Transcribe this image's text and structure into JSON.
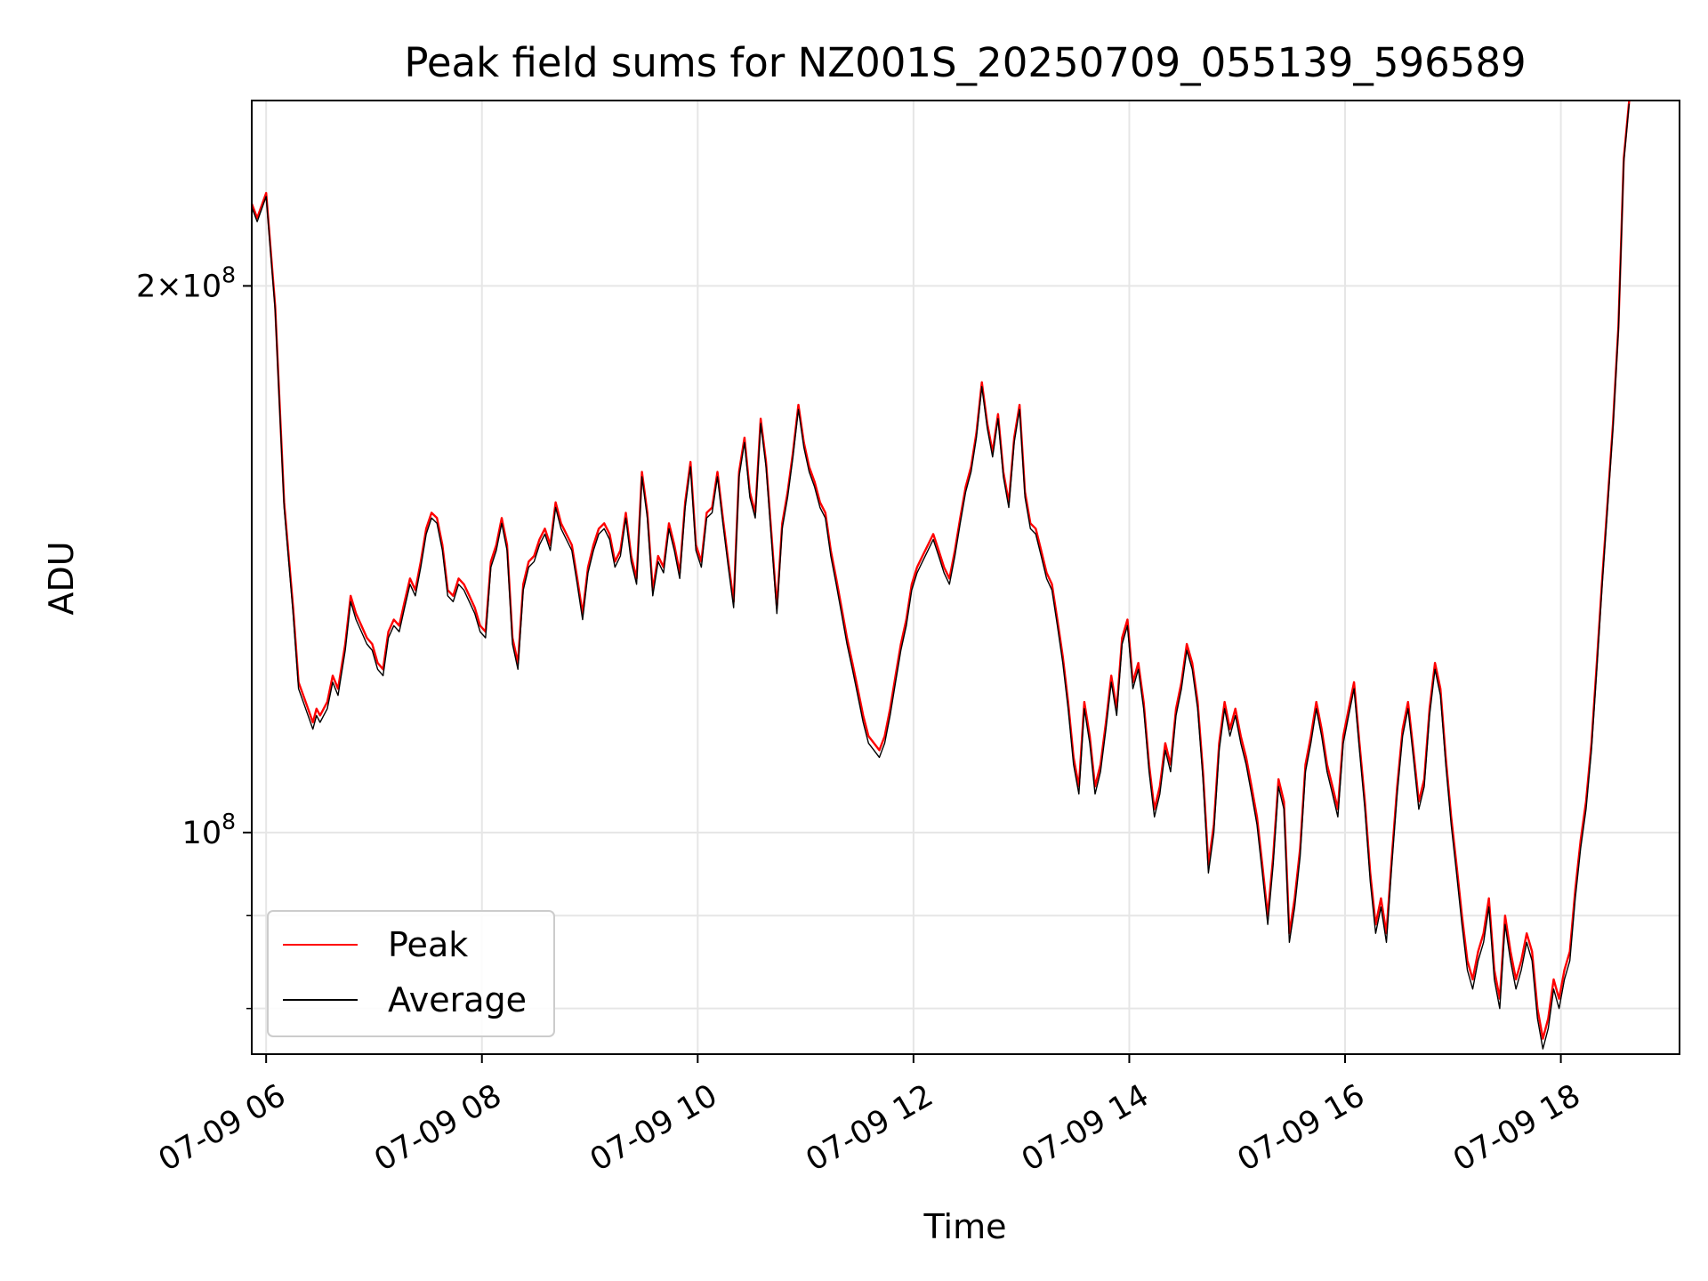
{
  "chart_data": {
    "type": "line",
    "title": "Peak field sums for NZ001S_20250709_055139_596589",
    "xlabel": "Time",
    "ylabel": "ADU",
    "y_scale": "log",
    "grid": true,
    "legend_position": "lower-left",
    "xlim": [
      "07-09 05:52",
      "07-09 19:06"
    ],
    "ylim": [
      75500000,
      253000000
    ],
    "x_ticks": [
      "07-09 06",
      "07-09 08",
      "07-09 10",
      "07-09 12",
      "07-09 14",
      "07-09 16",
      "07-09 18"
    ],
    "y_ticks": [
      {
        "value": 200000000,
        "mantissa": "2",
        "exponent": "8"
      },
      {
        "value": 100000000,
        "mantissa": "",
        "exponent": "8"
      }
    ],
    "series": [
      {
        "name": "Peak",
        "color": "#ff0000"
      },
      {
        "name": "Average",
        "color": "#000000"
      }
    ],
    "x": [
      "07-09 05:52",
      "07-09 05:55",
      "07-09 06:00",
      "07-09 06:05",
      "07-09 06:10",
      "07-09 06:15",
      "07-09 06:18",
      "07-09 06:22",
      "07-09 06:26",
      "07-09 06:28",
      "07-09 06:30",
      "07-09 06:34",
      "07-09 06:37",
      "07-09 06:40",
      "07-09 06:44",
      "07-09 06:47",
      "07-09 06:50",
      "07-09 06:53",
      "07-09 06:56",
      "07-09 06:59",
      "07-09 07:02",
      "07-09 07:05",
      "07-09 07:08",
      "07-09 07:11",
      "07-09 07:14",
      "07-09 07:17",
      "07-09 07:20",
      "07-09 07:23",
      "07-09 07:26",
      "07-09 07:29",
      "07-09 07:32",
      "07-09 07:35",
      "07-09 07:38",
      "07-09 07:41",
      "07-09 07:44",
      "07-09 07:47",
      "07-09 07:50",
      "07-09 07:53",
      "07-09 07:56",
      "07-09 07:59",
      "07-09 08:02",
      "07-09 08:05",
      "07-09 08:08",
      "07-09 08:11",
      "07-09 08:14",
      "07-09 08:17",
      "07-09 08:20",
      "07-09 08:23",
      "07-09 08:26",
      "07-09 08:29",
      "07-09 08:32",
      "07-09 08:35",
      "07-09 08:38",
      "07-09 08:41",
      "07-09 08:44",
      "07-09 08:47",
      "07-09 08:50",
      "07-09 08:53",
      "07-09 08:56",
      "07-09 08:59",
      "07-09 09:02",
      "07-09 09:05",
      "07-09 09:08",
      "07-09 09:11",
      "07-09 09:14",
      "07-09 09:17",
      "07-09 09:20",
      "07-09 09:23",
      "07-09 09:26",
      "07-09 09:29",
      "07-09 09:32",
      "07-09 09:35",
      "07-09 09:38",
      "07-09 09:41",
      "07-09 09:44",
      "07-09 09:47",
      "07-09 09:50",
      "07-09 09:53",
      "07-09 09:56",
      "07-09 09:59",
      "07-09 10:02",
      "07-09 10:05",
      "07-09 10:08",
      "07-09 10:11",
      "07-09 10:14",
      "07-09 10:17",
      "07-09 10:20",
      "07-09 10:23",
      "07-09 10:26",
      "07-09 10:29",
      "07-09 10:32",
      "07-09 10:35",
      "07-09 10:38",
      "07-09 10:41",
      "07-09 10:44",
      "07-09 10:47",
      "07-09 10:50",
      "07-09 10:53",
      "07-09 10:56",
      "07-09 10:59",
      "07-09 11:02",
      "07-09 11:05",
      "07-09 11:08",
      "07-09 11:11",
      "07-09 11:14",
      "07-09 11:17",
      "07-09 11:20",
      "07-09 11:23",
      "07-09 11:26",
      "07-09 11:29",
      "07-09 11:32",
      "07-09 11:35",
      "07-09 11:38",
      "07-09 11:41",
      "07-09 11:44",
      "07-09 11:47",
      "07-09 11:50",
      "07-09 11:53",
      "07-09 11:56",
      "07-09 11:59",
      "07-09 12:02",
      "07-09 12:05",
      "07-09 12:08",
      "07-09 12:11",
      "07-09 12:14",
      "07-09 12:17",
      "07-09 12:20",
      "07-09 12:23",
      "07-09 12:26",
      "07-09 12:29",
      "07-09 12:32",
      "07-09 12:35",
      "07-09 12:38",
      "07-09 12:41",
      "07-09 12:44",
      "07-09 12:47",
      "07-09 12:50",
      "07-09 12:53",
      "07-09 12:56",
      "07-09 12:59",
      "07-09 13:02",
      "07-09 13:05",
      "07-09 13:08",
      "07-09 13:11",
      "07-09 13:14",
      "07-09 13:17",
      "07-09 13:20",
      "07-09 13:23",
      "07-09 13:26",
      "07-09 13:29",
      "07-09 13:32",
      "07-09 13:35",
      "07-09 13:38",
      "07-09 13:41",
      "07-09 13:44",
      "07-09 13:47",
      "07-09 13:50",
      "07-09 13:53",
      "07-09 13:56",
      "07-09 13:59",
      "07-09 14:02",
      "07-09 14:05",
      "07-09 14:08",
      "07-09 14:11",
      "07-09 14:14",
      "07-09 14:17",
      "07-09 14:20",
      "07-09 14:23",
      "07-09 14:26",
      "07-09 14:29",
      "07-09 14:32",
      "07-09 14:35",
      "07-09 14:38",
      "07-09 14:41",
      "07-09 14:44",
      "07-09 14:47",
      "07-09 14:50",
      "07-09 14:53",
      "07-09 14:56",
      "07-09 14:59",
      "07-09 15:02",
      "07-09 15:05",
      "07-09 15:08",
      "07-09 15:11",
      "07-09 15:14",
      "07-09 15:17",
      "07-09 15:20",
      "07-09 15:23",
      "07-09 15:26",
      "07-09 15:29",
      "07-09 15:32",
      "07-09 15:35",
      "07-09 15:38",
      "07-09 15:41",
      "07-09 15:44",
      "07-09 15:47",
      "07-09 15:50",
      "07-09 15:53",
      "07-09 15:56",
      "07-09 15:59",
      "07-09 16:02",
      "07-09 16:05",
      "07-09 16:08",
      "07-09 16:11",
      "07-09 16:14",
      "07-09 16:17",
      "07-09 16:20",
      "07-09 16:23",
      "07-09 16:26",
      "07-09 16:29",
      "07-09 16:32",
      "07-09 16:35",
      "07-09 16:38",
      "07-09 16:41",
      "07-09 16:44",
      "07-09 16:47",
      "07-09 16:50",
      "07-09 16:53",
      "07-09 16:56",
      "07-09 16:59",
      "07-09 17:02",
      "07-09 17:05",
      "07-09 17:08",
      "07-09 17:11",
      "07-09 17:14",
      "07-09 17:17",
      "07-09 17:20",
      "07-09 17:23",
      "07-09 17:26",
      "07-09 17:29",
      "07-09 17:32",
      "07-09 17:35",
      "07-09 17:38",
      "07-09 17:41",
      "07-09 17:44",
      "07-09 17:47",
      "07-09 17:50",
      "07-09 17:53",
      "07-09 17:56",
      "07-09 17:59",
      "07-09 18:02",
      "07-09 18:05",
      "07-09 18:08",
      "07-09 18:11",
      "07-09 18:14",
      "07-09 18:17",
      "07-09 18:20",
      "07-09 18:23",
      "07-09 18:26",
      "07-09 18:29",
      "07-09 18:32",
      "07-09 18:35",
      "07-09 18:38",
      "07-09 18:41",
      "07-09 18:44",
      "07-09 18:47",
      "07-09 18:50",
      "07-09 18:53",
      "07-09 18:56",
      "07-09 18:59",
      "07-09 19:02",
      "07-09 19:06"
    ],
    "y_peak_adu": [
      222000000.0,
      218000000.0,
      225000000.0,
      195000000.0,
      152000000.0,
      133000000.0,
      121000000.0,
      118000000.0,
      115000000.0,
      117000000.0,
      116000000.0,
      118000000.0,
      122000000.0,
      120000000.0,
      127000000.0,
      135000000.0,
      132000000.0,
      130000000.0,
      128000000.0,
      127000000.0,
      124000000.0,
      123000000.0,
      129000000.0,
      131000000.0,
      130000000.0,
      134000000.0,
      138000000.0,
      136000000.0,
      141000000.0,
      147000000.0,
      150000000.0,
      149000000.0,
      144000000.0,
      136000000.0,
      135000000.0,
      138000000.0,
      137000000.0,
      135000000.0,
      133000000.0,
      130000000.0,
      129000000.0,
      141000000.0,
      144000000.0,
      149000000.0,
      144000000.0,
      128000000.0,
      124000000.0,
      137000000.0,
      141000000.0,
      142000000.0,
      145000000.0,
      147000000.0,
      144000000.0,
      152000000.0,
      148000000.0,
      146000000.0,
      144000000.0,
      138000000.0,
      132000000.0,
      140000000.0,
      144000000.0,
      147000000.0,
      148000000.0,
      146000000.0,
      141000000.0,
      143000000.0,
      150000000.0,
      142000000.0,
      138000000.0,
      158000000.0,
      150000000.0,
      136000000.0,
      142000000.0,
      140000000.0,
      148000000.0,
      144000000.0,
      139000000.0,
      152000000.0,
      160000000.0,
      144000000.0,
      141000000.0,
      150000000.0,
      151000000.0,
      158000000.0,
      149000000.0,
      141000000.0,
      134000000.0,
      158000000.0,
      165000000.0,
      154000000.0,
      150000000.0,
      169000000.0,
      160000000.0,
      146000000.0,
      133000000.0,
      148000000.0,
      154000000.0,
      162000000.0,
      172000000.0,
      164000000.0,
      159000000.0,
      156000000.0,
      152000000.0,
      150000000.0,
      143000000.0,
      138000000.0,
      133000000.0,
      128000000.0,
      124000000.0,
      120000000.0,
      116000000.0,
      113000000.0,
      112000000.0,
      111000000.0,
      113000000.0,
      117000000.0,
      122000000.0,
      127000000.0,
      131000000.0,
      137000000.0,
      140000000.0,
      142000000.0,
      144000000.0,
      146000000.0,
      143000000.0,
      140000000.0,
      138000000.0,
      143000000.0,
      149000000.0,
      155000000.0,
      159000000.0,
      166000000.0,
      177000000.0,
      168000000.0,
      162000000.0,
      170000000.0,
      158000000.0,
      152000000.0,
      165000000.0,
      172000000.0,
      154000000.0,
      148000000.0,
      147000000.0,
      143000000.0,
      139000000.0,
      137000000.0,
      131000000.0,
      125000000.0,
      118000000.0,
      110000000.0,
      106000000.0,
      118000000.0,
      113000000.0,
      106000000.0,
      109000000.0,
      115000000.0,
      122000000.0,
      117000000.0,
      128000000.0,
      131000000.0,
      121000000.0,
      124000000.0,
      118000000.0,
      109000000.0,
      103000000.0,
      106000000.0,
      112000000.0,
      109000000.0,
      117000000.0,
      121000000.0,
      127000000.0,
      124000000.0,
      118000000.0,
      108000000.0,
      96000000.0,
      101000000.0,
      112000000.0,
      118000000.0,
      114000000.0,
      117000000.0,
      113000000.0,
      110000000.0,
      106000000.0,
      102000000.0,
      96000000.0,
      90000000.0,
      97000000.0,
      107000000.0,
      104000000.0,
      88000000.0,
      92000000.0,
      98000000.0,
      109000000.0,
      113000000.0,
      118000000.0,
      114000000.0,
      109000000.0,
      106000000.0,
      103000000.0,
      113000000.0,
      117000000.0,
      121000000.0,
      112000000.0,
      104000000.0,
      95000000.0,
      89000000.0,
      92000000.0,
      88000000.0,
      97000000.0,
      106000000.0,
      114000000.0,
      118000000.0,
      111000000.0,
      104000000.0,
      107000000.0,
      117000000.0,
      124000000.0,
      120000000.0,
      110000000.0,
      102000000.0,
      96000000.0,
      90000000.0,
      85000000.0,
      83000000.0,
      86000000.0,
      88000000.0,
      92000000.0,
      84000000.0,
      81000000.0,
      90000000.0,
      86000000.0,
      83000000.0,
      85000000.0,
      88000000.0,
      86000000.0,
      80000000.0,
      77000000.0,
      79000000.0,
      83000000.0,
      81000000.0,
      84000000.0,
      86000000.0,
      93000000.0,
      99000000.0,
      104000000.0,
      112000000.0,
      124000000.0,
      138000000.0,
      152000000.0,
      168000000.0,
      190000000.0,
      235000000.0,
      253000000.0
    ],
    "y_average_adu": [
      221000000.0,
      217000000.0,
      224000000.0,
      194000000.0,
      151000000.0,
      132000000.0,
      120000000.0,
      117000000.0,
      114000000.0,
      116000000.0,
      115000000.0,
      117000000.0,
      121000000.0,
      119000000.0,
      126000000.0,
      134000000.0,
      131000000.0,
      129000000.0,
      127000000.0,
      126000000.0,
      123000000.0,
      122000000.0,
      128000000.0,
      130000000.0,
      129000000.0,
      133000000.0,
      137000000.0,
      135000000.0,
      140000000.0,
      146000000.0,
      149000000.0,
      148000000.0,
      143000000.0,
      135000000.0,
      134000000.0,
      137000000.0,
      136000000.0,
      134000000.0,
      132000000.0,
      129000000.0,
      128000000.0,
      140000000.0,
      143000000.0,
      148000000.0,
      143000000.0,
      127000000.0,
      123000000.0,
      136000000.0,
      140000000.0,
      141000000.0,
      144000000.0,
      146000000.0,
      143000000.0,
      151000000.0,
      147000000.0,
      145000000.0,
      143000000.0,
      137000000.0,
      131000000.0,
      139000000.0,
      143000000.0,
      146000000.0,
      147000000.0,
      145000000.0,
      140000000.0,
      142000000.0,
      149000000.0,
      141000000.0,
      137000000.0,
      157000000.0,
      149000000.0,
      135000000.0,
      141000000.0,
      139000000.0,
      147000000.0,
      143000000.0,
      138000000.0,
      151000000.0,
      159000000.0,
      143000000.0,
      140000000.0,
      149000000.0,
      150000000.0,
      157000000.0,
      148000000.0,
      140000000.0,
      133000000.0,
      157000000.0,
      164000000.0,
      153000000.0,
      149000000.0,
      168000000.0,
      159000000.0,
      145000000.0,
      132000000.0,
      147000000.0,
      153000000.0,
      161000000.0,
      171000000.0,
      163000000.0,
      158000000.0,
      155000000.0,
      151000000.0,
      149000000.0,
      142000000.0,
      137000000.0,
      132000000.0,
      127000000.0,
      123000000.0,
      119000000.0,
      115000000.0,
      112000000.0,
      111000000.0,
      110000000.0,
      112000000.0,
      116000000.0,
      121000000.0,
      126000000.0,
      130000000.0,
      136000000.0,
      139000000.0,
      141000000.0,
      143000000.0,
      145000000.0,
      142000000.0,
      139000000.0,
      137000000.0,
      142000000.0,
      148000000.0,
      154000000.0,
      158000000.0,
      165000000.0,
      176000000.0,
      167000000.0,
      161000000.0,
      169000000.0,
      157000000.0,
      151000000.0,
      164000000.0,
      171000000.0,
      153000000.0,
      147000000.0,
      146000000.0,
      142000000.0,
      138000000.0,
      136000000.0,
      130000000.0,
      124000000.0,
      117000000.0,
      109000000.0,
      105000000.0,
      117000000.0,
      112000000.0,
      105000000.0,
      108000000.0,
      114000000.0,
      121000000.0,
      116000000.0,
      127000000.0,
      130000000.0,
      120000000.0,
      123000000.0,
      117000000.0,
      108000000.0,
      102000000.0,
      105000000.0,
      111000000.0,
      108000000.0,
      116000000.0,
      120000000.0,
      126000000.0,
      123000000.0,
      117000000.0,
      107000000.0,
      95000000.0,
      100000000.0,
      111000000.0,
      117000000.0,
      113000000.0,
      116000000.0,
      112000000.0,
      109000000.0,
      105000000.0,
      101000000.0,
      95000000.0,
      89000000.0,
      96000000.0,
      106000000.0,
      103000000.0,
      87000000.0,
      91000000.0,
      97000000.0,
      108000000.0,
      112000000.0,
      117000000.0,
      113000000.0,
      108000000.0,
      105000000.0,
      102000000.0,
      112000000.0,
      116000000.0,
      120000000.0,
      111000000.0,
      103000000.0,
      94000000.0,
      88000000.0,
      91000000.0,
      87000000.0,
      96000000.0,
      105000000.0,
      113000000.0,
      117000000.0,
      110000000.0,
      103000000.0,
      106000000.0,
      116000000.0,
      123000000.0,
      119000000.0,
      109000000.0,
      101000000.0,
      95000000.0,
      89000000.0,
      84000000.0,
      82000000.0,
      85000000.0,
      87000000.0,
      91000000.0,
      83000000.0,
      80000000.0,
      89000000.0,
      85000000.0,
      82000000.0,
      84000000.0,
      87000000.0,
      85000000.0,
      79000000.0,
      76000000.0,
      78000000.0,
      82000000.0,
      80000000.0,
      83000000.0,
      85000000.0,
      92000000.0,
      98000000.0,
      103000000.0,
      111000000.0,
      123000000.0,
      137000000.0,
      151000000.0,
      167000000.0,
      189000000.0,
      234000000.0,
      252000000.0
    ]
  }
}
